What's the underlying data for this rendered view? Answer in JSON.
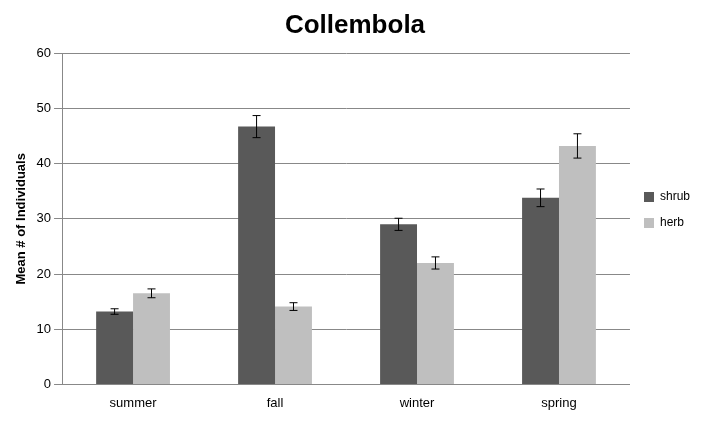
{
  "chart_data": {
    "type": "bar",
    "title": "Collembola",
    "y_label": "Mean # of Individuals",
    "categories": [
      "summer",
      "fall",
      "winter",
      "spring"
    ],
    "series": [
      {
        "name": "shrub",
        "color": "#595959",
        "values": [
          13.2,
          46.7,
          29.0,
          33.8
        ],
        "errors": [
          0.5,
          2.0,
          1.1,
          1.6
        ]
      },
      {
        "name": "herb",
        "color": "#bfbfbf",
        "values": [
          16.5,
          14.1,
          22.0,
          43.2
        ],
        "errors": [
          0.8,
          0.7,
          1.1,
          2.2
        ]
      }
    ],
    "ylim": [
      0,
      60
    ],
    "yticks": [
      0,
      10,
      20,
      30,
      40,
      50,
      60
    ],
    "grid": true,
    "legend": "right"
  }
}
